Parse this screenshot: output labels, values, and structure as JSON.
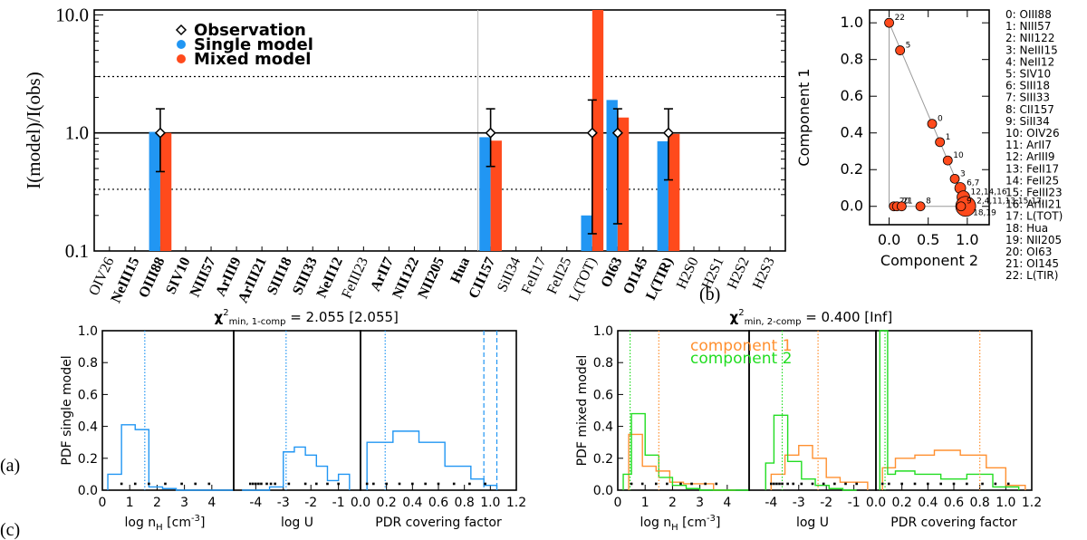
{
  "colors": {
    "single": "#2196f3",
    "mixed": "#ff4a1c",
    "comp1": "#ff9030",
    "comp2": "#22dd22",
    "black": "#000000",
    "gray": "#999999"
  },
  "chart_data": [
    {
      "id": "a",
      "panel_label": "(a)",
      "type": "bar",
      "ylabel": "I(model)/I(obs)",
      "yscale": "log",
      "ylim": [
        0.1,
        11
      ],
      "yticks": [
        "0.1",
        "1.0",
        "10.0"
      ],
      "legend": [
        "Observation",
        "Single model",
        "Mixed model"
      ],
      "categories": [
        "OIV26",
        "NeIII15",
        "OIII88",
        "SIV10",
        "NIII57",
        "ArIII9",
        "ArIII21",
        "SIII18",
        "SIII33",
        "NeII12",
        "FeIII23",
        "ArII7",
        "NII122",
        "NII205",
        "Hua",
        "CII157",
        "SiII34",
        "FeII17",
        "FeII25",
        "L(TOT)",
        "OI63",
        "OI145",
        "L(TIR)",
        "H2S0",
        "H2S1",
        "H2S2",
        "H2S3"
      ],
      "bold_categories": [
        "NeIII15",
        "OIII88",
        "SIV10",
        "NIII57",
        "ArIII9",
        "ArIII21",
        "SIII18",
        "SIII33",
        "NeII12",
        "ArII7",
        "NII122",
        "NII205",
        "Hua",
        "CII157",
        "OI63",
        "OI145",
        "L(TIR)"
      ],
      "series": [
        {
          "name": "Single model",
          "values": [
            null,
            null,
            1.02,
            null,
            null,
            null,
            null,
            null,
            null,
            null,
            null,
            null,
            null,
            null,
            null,
            0.92,
            null,
            null,
            null,
            0.2,
            1.9,
            null,
            0.85,
            null,
            null,
            null,
            null
          ]
        },
        {
          "name": "Mixed model",
          "values": [
            null,
            null,
            1.0,
            null,
            null,
            null,
            null,
            null,
            null,
            null,
            null,
            null,
            null,
            null,
            null,
            0.86,
            null,
            null,
            null,
            11.0,
            1.35,
            null,
            0.98,
            null,
            null,
            null,
            null
          ]
        }
      ],
      "observations": [
        {
          "category": "OIII88",
          "value": 1.0,
          "err_low": 0.47,
          "err_high": 1.6
        },
        {
          "category": "CII157",
          "value": 1.0,
          "err_low": 0.52,
          "err_high": 1.6
        },
        {
          "category": "L(TOT)",
          "value": 1.0,
          "err_low": 0.14,
          "err_high": 1.9
        },
        {
          "category": "OI63",
          "value": 1.0,
          "err_low": 0.17,
          "err_high": 1.6
        },
        {
          "category": "L(TIR)",
          "value": 1.0,
          "err_low": 0.4,
          "err_high": 1.6
        }
      ],
      "reference_lines": [
        1.0,
        3.0,
        0.333
      ],
      "separator_after": "Hua"
    },
    {
      "id": "b",
      "panel_label": "(b)",
      "type": "scatter",
      "xlabel": "Component 2",
      "ylabel": "Component 1",
      "xlim": [
        -0.25,
        1.28
      ],
      "ylim": [
        -0.1,
        1.07
      ],
      "xticks": [
        "0.0",
        "0.5",
        "1.0"
      ],
      "yticks": [
        "0.0",
        "0.2",
        "0.4",
        "0.6",
        "0.8",
        "1.0"
      ],
      "triangle": [
        [
          0,
          1
        ],
        [
          0,
          0
        ],
        [
          1,
          0
        ]
      ],
      "points": [
        {
          "label": "22",
          "x": 0.0,
          "y": 1.0,
          "size": 5
        },
        {
          "label": "5",
          "x": 0.14,
          "y": 0.85,
          "size": 5
        },
        {
          "label": "0",
          "x": 0.55,
          "y": 0.45,
          "size": 5
        },
        {
          "label": "1",
          "x": 0.65,
          "y": 0.35,
          "size": 5
        },
        {
          "label": "10",
          "x": 0.75,
          "y": 0.25,
          "size": 5
        },
        {
          "label": "3",
          "x": 0.84,
          "y": 0.15,
          "size": 5
        },
        {
          "label": "6,7",
          "x": 0.91,
          "y": 0.1,
          "size": 6
        },
        {
          "label": "12,14,16",
          "x": 0.95,
          "y": 0.05,
          "size": 7
        },
        {
          "label": "2,4,11,13,15,17,",
          "x": 0.98,
          "y": 0.0,
          "size": 11
        },
        {
          "label": "18,19",
          "x": null,
          "y": null,
          "size": 0
        },
        {
          "label": "9",
          "x": 0.92,
          "y": 0.0,
          "size": 5
        },
        {
          "label": "8",
          "x": 0.4,
          "y": 0.0,
          "size": 5
        },
        {
          "label": "20",
          "x": 0.06,
          "y": 0.0,
          "size": 5
        },
        {
          "label": "21",
          "x": 0.1,
          "y": 0.0,
          "size": 5
        },
        {
          "label": "",
          "x": 0.16,
          "y": 0.0,
          "size": 5
        }
      ],
      "index_legend": [
        "0: OIII88",
        "1: NIII57",
        "2: NII122",
        "3: NeIII15",
        "4: NeII12",
        "5: SIV10",
        "6: SIII18",
        "7: SIII33",
        "8: CII157",
        "9: SiII34",
        "10: OIV26",
        "11:  ArII7",
        "12: ArIII9",
        "13: FeII17",
        "14: FeII25",
        "15: FeIII23",
        "16: ArIII21",
        "17: L(TOT)",
        "18:  Hua",
        "19: NII205",
        "20: OI63",
        "21: OI145",
        "22: L(TIR)"
      ]
    },
    {
      "id": "c-single",
      "panel_label": "(c)",
      "type": "histogram",
      "title_prefix": "χ",
      "title_sup": "2",
      "title_sub": "min, 1-comp",
      "title_value": " = 2.055 [2.055]",
      "ylabel": "PDF single model",
      "ylim": [
        0,
        1.0
      ],
      "yticks": [
        "0.0",
        "0.2",
        "0.4",
        "0.6",
        "0.8",
        "1.0"
      ],
      "panels": [
        {
          "xlabel": "log n",
          "xlabel_sub": "H",
          "xlabel_unit": " [cm",
          "xlabel_sup": "-3",
          "xlabel_end": "]",
          "xlim": [
            0,
            4.8
          ],
          "xticks": [
            "0",
            "1",
            "2",
            "3",
            "4"
          ],
          "series": [
            {
              "name": "single",
              "edges": [
                0.2,
                0.7,
                1.2,
                1.7,
                2.2,
                2.7,
                3.2,
                3.7,
                4.2,
                4.8
              ],
              "values": [
                0.1,
                0.41,
                0.38,
                0.02,
                0.01,
                0.0,
                0.0,
                0.0,
                0.0
              ]
            }
          ],
          "vlines": [
            1.55
          ],
          "dots": [
            0.7,
            1.2,
            1.7,
            2.3,
            2.9,
            3.4,
            3.9
          ]
        },
        {
          "xlabel": "log U",
          "xlim": [
            -4.8,
            -0.2
          ],
          "xticks": [
            "-4",
            "-3",
            "-2",
            "-1"
          ],
          "series": [
            {
              "name": "single",
              "edges": [
                -4.5,
                -3.5,
                -3.0,
                -2.6,
                -2.2,
                -1.8,
                -1.4,
                -1.0,
                -0.6
              ],
              "values": [
                0.0,
                0.02,
                0.24,
                0.27,
                0.22,
                0.15,
                0.06,
                0.1
              ]
            }
          ],
          "vlines": [
            -2.9
          ],
          "dots": [
            -4.2,
            -4.1,
            -4.0,
            -3.9,
            -3.8,
            -3.6,
            -3.45,
            -3.3,
            -2.8,
            -2.2,
            -1.8,
            -1.4,
            -1.0
          ]
        },
        {
          "xlabel": "PDR covering factor",
          "xlim": [
            0,
            1.2
          ],
          "xticks": [
            "0.0",
            "0.2",
            "0.4",
            "0.6",
            "0.8",
            "1.0",
            "1.2"
          ],
          "series": [
            {
              "name": "single",
              "edges": [
                0.05,
                0.25,
                0.45,
                0.65,
                0.85,
                0.95,
                1.05
              ],
              "values": [
                0.3,
                0.37,
                0.3,
                0.15,
                0.07,
                0.03
              ]
            }
          ],
          "vlines": [
            0.19,
            0.95,
            1.05
          ],
          "dashed_vlines": [
            0.95,
            1.05
          ],
          "dots": [
            0.05,
            0.1,
            0.2,
            0.3,
            0.4,
            0.5,
            0.6,
            0.72,
            0.84,
            0.96
          ]
        }
      ]
    },
    {
      "id": "c-mixed",
      "type": "histogram",
      "title_prefix": "χ",
      "title_sup": "2",
      "title_sub": "min, 2-comp",
      "title_value": " = 0.400 [Inf]",
      "ylabel": "PDF mixed model",
      "ylim": [
        0,
        1.0
      ],
      "yticks": [
        "0.0",
        "0.2",
        "0.4",
        "0.6",
        "0.8",
        "1.0"
      ],
      "legend": [
        "component 1",
        "component 2"
      ],
      "panels": [
        {
          "xlabel": "log n",
          "xlabel_sub": "H",
          "xlabel_unit": " [cm",
          "xlabel_sup": "-3",
          "xlabel_end": "]",
          "xlim": [
            0,
            4.8
          ],
          "xticks": [
            "0",
            "1",
            "2",
            "3",
            "4"
          ],
          "series": [
            {
              "name": "component 1",
              "edges": [
                0.4,
                0.9,
                1.4,
                1.9,
                2.4,
                2.9,
                3.5,
                4.3
              ],
              "values": [
                0.35,
                0.15,
                0.12,
                0.05,
                0.04,
                0.04,
                0.0
              ]
            },
            {
              "name": "component 2",
              "edges": [
                0.2,
                0.5,
                1.0,
                1.5,
                2.0,
                2.5,
                3.0,
                4.8
              ],
              "values": [
                0.1,
                0.48,
                0.22,
                0.08,
                0.03,
                0.01,
                0.0
              ]
            }
          ],
          "vlines_c1": [
            1.5
          ],
          "vlines_c2": [
            0.45
          ],
          "dots": [
            0.5,
            0.9,
            1.4,
            1.8,
            2.3,
            2.7,
            3.2,
            3.6
          ]
        },
        {
          "xlabel": "log U",
          "xlim": [
            -4.8,
            -0.2
          ],
          "xticks": [
            "-4",
            "-3",
            "-2",
            "-1"
          ],
          "series": [
            {
              "name": "component 1",
              "edges": [
                -4.0,
                -3.5,
                -3.0,
                -2.5,
                -2.0,
                -1.5,
                -1.0,
                -0.5
              ],
              "values": [
                0.1,
                0.22,
                0.28,
                0.2,
                0.08,
                0.05,
                0.05
              ]
            },
            {
              "name": "component 2",
              "edges": [
                -4.2,
                -3.9,
                -3.4,
                -2.9,
                -2.4,
                -1.9,
                -1.4,
                -0.9
              ],
              "values": [
                0.17,
                0.47,
                0.18,
                0.07,
                0.03,
                0.01,
                0.0
              ]
            }
          ],
          "vlines_c1": [
            -2.3
          ],
          "vlines_c2": [
            -3.6
          ],
          "dots": [
            -4.0,
            -3.9,
            -3.8,
            -3.7,
            -3.6,
            -3.4,
            -3.2,
            -2.9,
            -2.5,
            -2.1,
            -1.7,
            -1.3,
            -0.9
          ]
        },
        {
          "xlabel": "PDR covering factor",
          "xlim": [
            0,
            1.2
          ],
          "xticks": [
            "0.0",
            "0.2",
            "0.4",
            "0.6",
            "0.8",
            "1.0",
            "1.2"
          ],
          "series": [
            {
              "name": "component 1",
              "edges": [
                0.05,
                0.15,
                0.3,
                0.45,
                0.65,
                0.85,
                1.0,
                1.15
              ],
              "values": [
                0.14,
                0.2,
                0.22,
                0.25,
                0.22,
                0.14,
                0.03
              ]
            },
            {
              "name": "component 2",
              "edges": [
                0.03,
                0.09,
                0.15,
                0.3,
                0.5,
                0.7,
                0.9,
                1.1
              ],
              "values": [
                1.0,
                0.1,
                0.12,
                0.1,
                0.07,
                0.1,
                0.02
              ]
            }
          ],
          "vlines_c1": [
            0.8
          ],
          "vlines_c2": [
            0.07
          ],
          "dots": [
            0.05,
            0.1,
            0.2,
            0.3,
            0.4,
            0.5,
            0.6,
            0.7,
            0.82,
            0.92,
            1.02
          ]
        }
      ]
    }
  ]
}
